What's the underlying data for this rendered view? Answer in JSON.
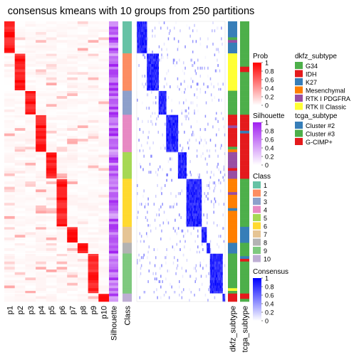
{
  "chart_data": {
    "type": "heatmap",
    "title": "consensus kmeans with 10 groups from 250 partitions",
    "prob_columns": [
      "p1",
      "p2",
      "p3",
      "p4",
      "p5",
      "p6",
      "p7",
      "p8",
      "p9",
      "p10"
    ],
    "track_labels": {
      "silhouette": "Silhouette",
      "class": "Class",
      "dkfz": "dkfz_subtype",
      "tcga": "tcga_subtype"
    },
    "class_sizes": [
      12,
      14,
      9,
      14,
      10,
      18,
      6,
      4,
      15,
      3
    ],
    "row_order_classes": [
      1,
      2,
      3,
      4,
      5,
      6,
      7,
      8,
      9,
      10
    ],
    "colors": {
      "prob": "#ff0000",
      "silhouette": "#a020f0",
      "consensus": "#0000ff",
      "class": [
        "#66c2a5",
        "#fc8d62",
        "#8da0cb",
        "#e78ac3",
        "#a6d854",
        "#ffd92f",
        "#e5c494",
        "#b3b3b3",
        "#7fc97f",
        "#beaed4"
      ],
      "dkfz": {
        "G34": "#4daf4a",
        "IDH": "#e41a1c",
        "K27": "#377eb8",
        "Mesenchymal": "#ff7f00",
        "RTK I PDGFRA": "#984ea3",
        "RTK II Classic": "#ffff33"
      },
      "tcga": {
        "Cluster #2": "#377eb8",
        "Cluster #3": "#4daf4a",
        "G-CIMP+": "#e41a1c"
      }
    },
    "legends": {
      "prob": {
        "title": "Prob",
        "ticks": [
          "1",
          "0.8",
          "0.6",
          "0.4",
          "0.2",
          "0"
        ]
      },
      "silhouette": {
        "title": "Silhouette",
        "ticks": [
          "1",
          "0.8",
          "0.6",
          "0.4",
          "0.2",
          "0"
        ]
      },
      "class": {
        "title": "Class",
        "items": [
          "1",
          "2",
          "3",
          "4",
          "5",
          "6",
          "7",
          "8",
          "9",
          "10"
        ]
      },
      "consensus": {
        "title": "Consensus",
        "ticks": [
          "1",
          "0.8",
          "0.6",
          "0.4",
          "0.2",
          "0"
        ]
      },
      "dkfz": {
        "title": "dkfz_subtype",
        "items": [
          "G34",
          "IDH",
          "K27",
          "Mesenchymal",
          "RTK I PDGFRA",
          "RTK II Classic"
        ]
      },
      "tcga": {
        "title": "tcga_subtype",
        "items": [
          "Cluster #2",
          "Cluster #3",
          "G-CIMP+"
        ]
      }
    }
  }
}
